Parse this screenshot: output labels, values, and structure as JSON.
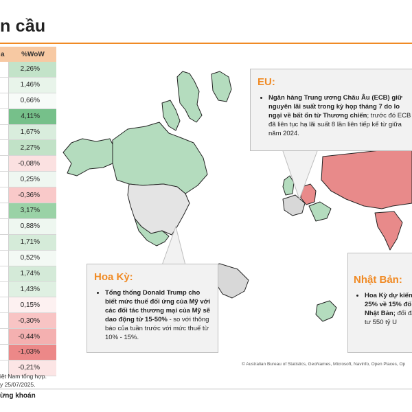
{
  "title": "n cầu",
  "table": {
    "col1_header": "a",
    "col2_header": "%WoW",
    "rows": [
      "2,26%",
      "1,46%",
      "0,66%",
      "4,11%",
      "1,67%",
      "2,27%",
      "-0,08%",
      "0,25%",
      "-0,36%",
      "3,17%",
      "0,88%",
      "1,71%",
      "0,52%",
      "1,74%",
      "1,43%",
      "0,15%",
      "-0,30%",
      "-0,44%",
      "-1,03%",
      "-0,21%"
    ],
    "row_colors": [
      "#c3e3c9",
      "#e8f4ea",
      "#f7fbf8",
      "#76c08a",
      "#d9eddd",
      "#c1e2c7",
      "#fbe1e1",
      "#eff7f1",
      "#f9c9c9",
      "#9ad2a6",
      "#eef7f0",
      "#d5ebd9",
      "#f3f9f4",
      "#d4ead8",
      "#dff0e2",
      "#fdf1f1",
      "#f8c4c4",
      "#f4b0b0",
      "#ec8888",
      "#fce5e5"
    ]
  },
  "notes": {
    "line1": "iệt Nam tổng hợp.",
    "line2": "y 25/07/2025."
  },
  "footer": "ừng khoán",
  "callouts": {
    "eu": {
      "title": "EU:",
      "bullet_bold": "Ngân hàng Trung ương Châu Âu (ECB) giữ nguyên lãi suất trong kỳ họp tháng 7 do lo ngại về bất ổn từ Thương chiến",
      "bullet_rest": "; trước đó ECB đã liên tục hạ lãi suất 8 lần liên tiếp kể từ giữa năm 2024."
    },
    "us": {
      "title": "Hoa Kỳ:",
      "bullet_bold": "Tổng thống Donald Trump cho biết mức thuế đối ứng của Mỹ với các đối tác thương mại của Mỹ sẽ dao động từ 15-50%",
      "bullet_rest": " - so với thông báo của tuần trước với mức thuế từ 10% - 15%."
    },
    "jp": {
      "title": "Nhật Bản:",
      "bullet_bold": "Hoa Kỳ dự kiến 25% về 15% đố Nhật Bản;",
      "bullet_rest": " đổi đầu tư 550 tỷ U"
    }
  },
  "attribution": "© Australian Bureau of Statistics, GeoNames, Microsoft, Navinfo, Open Places, Op",
  "colors": {
    "accent": "#f08a24",
    "header_fill": "#f7c9a3",
    "map_green": "#b4dcbe",
    "map_gray": "#d8d8d8",
    "map_red": "#e88a8a"
  }
}
